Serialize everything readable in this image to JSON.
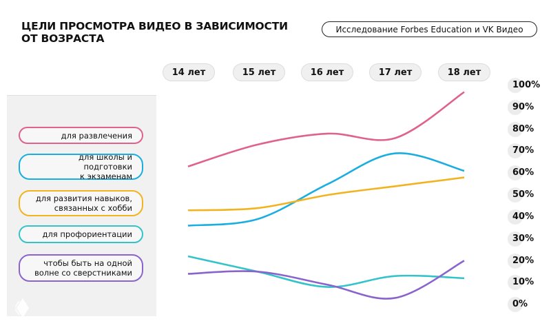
{
  "header": {
    "title_line1": "ЦЕЛИ ПРОСМОТРА ВИДЕО В ЗАВИСИМОСТИ",
    "title_line2": "ОТ ВОЗРАСТА",
    "source_label": "Исследование Forbes Education и VK Видео"
  },
  "x_axis": {
    "labels": [
      "14 лет",
      "15 лет",
      "16 лет",
      "17 лет",
      "18 лет"
    ]
  },
  "y_axis": {
    "labels": [
      "100%",
      "90%",
      "80%",
      "70%",
      "60%",
      "50%",
      "40%",
      "30%",
      "20%",
      "10%",
      "0%"
    ]
  },
  "legend": {
    "items": [
      {
        "label": "для развлечения",
        "color": "#e0608e"
      },
      {
        "label": "для школы и подготовки\nк экзаменам",
        "color": "#1aaee0"
      },
      {
        "label": "для развития навыков,\nсвязанных с хобби",
        "color": "#f2b321"
      },
      {
        "label": "для профориентации",
        "color": "#33c3c9"
      },
      {
        "label": "чтобы быть на одной\nволне со сверстниками",
        "color": "#8a63cc"
      }
    ]
  },
  "chart_data": {
    "type": "line",
    "title": "Цели просмотра видео в зависимости от возраста",
    "subtitle": "Исследование Forbes Education и VK Видео",
    "xlabel": "",
    "ylabel": "",
    "categories": [
      "14 лет",
      "15 лет",
      "16 лет",
      "17 лет",
      "18 лет"
    ],
    "ylim": [
      0,
      100
    ],
    "y_unit": "%",
    "grid": false,
    "legend_position": "left",
    "series": [
      {
        "name": "для развлечения",
        "color": "#e0608e",
        "values": [
          63,
          73,
          78,
          76,
          97
        ]
      },
      {
        "name": "для школы и подготовки к экзаменам",
        "color": "#1aaee0",
        "values": [
          36,
          39,
          55,
          69,
          61
        ]
      },
      {
        "name": "для развития навыков, связанных с хобби",
        "color": "#f2b321",
        "values": [
          43,
          44,
          50,
          54,
          58
        ]
      },
      {
        "name": "для профориентации",
        "color": "#33c3c9",
        "values": [
          22,
          15,
          8,
          13,
          12
        ]
      },
      {
        "name": "чтобы быть на одной волне со сверстниками",
        "color": "#8a63cc",
        "values": [
          14,
          15,
          9,
          3,
          20
        ]
      }
    ]
  }
}
